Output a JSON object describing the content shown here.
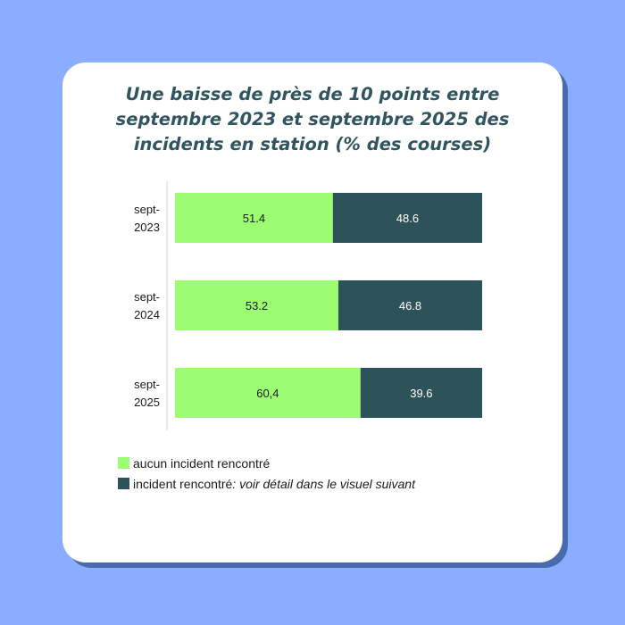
{
  "colors": {
    "background": "#8aadff",
    "no_incident": "#9cfd72",
    "incident": "#2d5259",
    "title": "#2f5560"
  },
  "chart_data": {
    "type": "bar",
    "orientation": "horizontal",
    "stacked": true,
    "title_lines": [
      "Une baisse de près de 10 points entre",
      "septembre 2023 et septembre 2025 des",
      "incidents en station (% des courses)"
    ],
    "categories": [
      [
        "sept-",
        "2023"
      ],
      [
        "sept-",
        "2024"
      ],
      [
        "sept-",
        "2025"
      ]
    ],
    "series": [
      {
        "name": "aucun incident rencontré",
        "values": [
          51.4,
          53.2,
          60.4
        ],
        "labels": [
          "51.4",
          "53.2",
          "60,4"
        ]
      },
      {
        "name": "incident rencontré",
        "name_note": " : voir détail dans le visuel suivant",
        "values": [
          48.6,
          46.8,
          39.6
        ],
        "labels": [
          "48.6",
          "46.8",
          "39.6"
        ]
      }
    ],
    "xlim": [
      0,
      100
    ],
    "legend_position": "bottom-left",
    "grid": false
  }
}
